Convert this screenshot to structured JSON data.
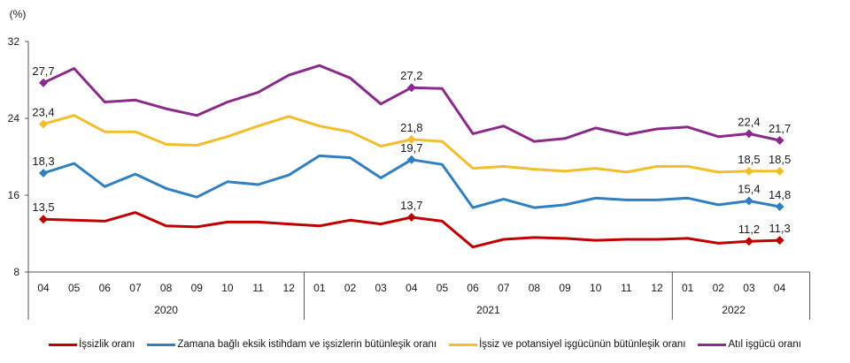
{
  "chart_data": {
    "type": "line",
    "ylabel": "(%)",
    "ylim": [
      8,
      32
    ],
    "yticks": [
      "8",
      "16",
      "24",
      "32"
    ],
    "ytick_values": [
      8,
      16,
      24,
      32
    ],
    "x": [
      "04",
      "05",
      "06",
      "07",
      "08",
      "09",
      "10",
      "11",
      "12",
      "01",
      "02",
      "03",
      "04",
      "05",
      "06",
      "07",
      "08",
      "09",
      "10",
      "11",
      "12",
      "01",
      "02",
      "03",
      "04"
    ],
    "year_groups": [
      {
        "label": "2020",
        "start": 0,
        "end": 8
      },
      {
        "label": "2021",
        "start": 9,
        "end": 20
      },
      {
        "label": "2022",
        "start": 21,
        "end": 24
      }
    ],
    "grid": false,
    "legend_position": "bottom",
    "series": [
      {
        "name": "İşsizlik oranı",
        "color": "#c00000",
        "values": [
          13.5,
          13.4,
          13.3,
          14.2,
          12.8,
          12.7,
          13.2,
          13.2,
          13.0,
          12.8,
          13.4,
          13.0,
          13.7,
          13.3,
          10.6,
          11.4,
          11.6,
          11.5,
          11.3,
          11.4,
          11.4,
          11.5,
          11.0,
          11.2,
          11.3
        ],
        "labels": [
          {
            "index": 0,
            "text": "13,5"
          },
          {
            "index": 12,
            "text": "13,7"
          },
          {
            "index": 23,
            "text": "11,2"
          },
          {
            "index": 24,
            "text": "11,3"
          }
        ]
      },
      {
        "name": "Zamana bağlı eksik istihdam ve işsizlerin bütünleşik oranı",
        "color": "#2f7fc1",
        "values": [
          18.3,
          19.3,
          16.9,
          18.2,
          16.7,
          15.8,
          17.4,
          17.1,
          18.1,
          20.1,
          19.9,
          17.8,
          19.7,
          19.2,
          14.7,
          15.6,
          14.7,
          15.0,
          15.7,
          15.5,
          15.5,
          15.7,
          15.0,
          15.4,
          14.8
        ],
        "labels": [
          {
            "index": 0,
            "text": "18,3"
          },
          {
            "index": 12,
            "text": "19,7"
          },
          {
            "index": 23,
            "text": "15,4"
          },
          {
            "index": 24,
            "text": "14,8"
          }
        ]
      },
      {
        "name": "İşsiz ve potansiyel işgücünün bütünleşik oranı",
        "color": "#f2be2c",
        "values": [
          23.4,
          24.3,
          22.6,
          22.6,
          21.3,
          21.2,
          22.1,
          23.2,
          24.2,
          23.2,
          22.6,
          21.1,
          21.8,
          21.6,
          18.8,
          19.0,
          18.7,
          18.5,
          18.8,
          18.4,
          19.0,
          19.0,
          18.4,
          18.5,
          18.5
        ],
        "labels": [
          {
            "index": 0,
            "text": "23,4"
          },
          {
            "index": 12,
            "text": "21,8"
          },
          {
            "index": 23,
            "text": "18,5"
          },
          {
            "index": 24,
            "text": "18,5"
          }
        ]
      },
      {
        "name": "Atıl işgücü oranı",
        "color": "#8b2a8b",
        "values": [
          27.7,
          29.2,
          25.7,
          25.9,
          25.0,
          24.3,
          25.7,
          26.7,
          28.5,
          29.5,
          28.2,
          25.5,
          27.2,
          27.1,
          22.4,
          23.2,
          21.6,
          21.9,
          23.0,
          22.3,
          22.9,
          23.1,
          22.1,
          22.4,
          21.7
        ],
        "labels": [
          {
            "index": 0,
            "text": "27,7"
          },
          {
            "index": 12,
            "text": "27,2"
          },
          {
            "index": 23,
            "text": "22,4"
          },
          {
            "index": 24,
            "text": "21,7"
          }
        ]
      }
    ]
  }
}
